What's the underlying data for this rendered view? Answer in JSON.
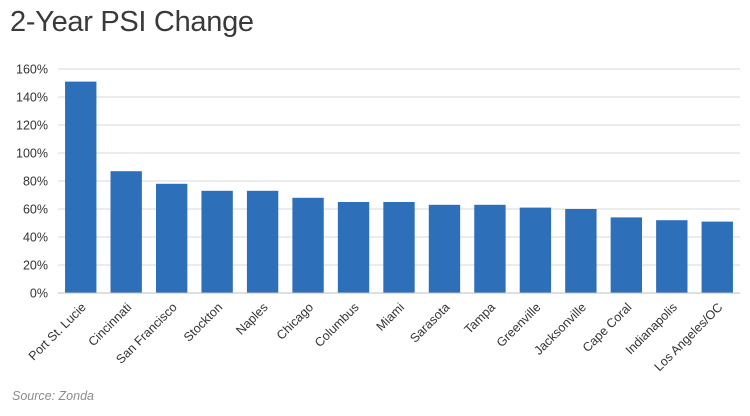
{
  "chart_data": {
    "type": "bar",
    "title": "2-Year PSI Change",
    "source": "Source: Zonda",
    "xlabel": "",
    "ylabel": "",
    "categories": [
      "Port St. Lucie",
      "Cincinnati",
      "San Francisco",
      "Stockton",
      "Naples",
      "Chicago",
      "Columbus",
      "Miami",
      "Sarasota",
      "Tampa",
      "Greenville",
      "Jacksonville",
      "Cape Coral",
      "Indianapolis",
      "Los Angeles/OC"
    ],
    "values": [
      151,
      87,
      78,
      73,
      73,
      68,
      65,
      65,
      63,
      63,
      61,
      60,
      54,
      52,
      51
    ],
    "ylim": [
      0,
      160
    ],
    "yticks": [
      0,
      20,
      40,
      60,
      80,
      100,
      120,
      140,
      160
    ],
    "ytick_labels": [
      "0%",
      "20%",
      "40%",
      "60%",
      "80%",
      "100%",
      "120%",
      "140%",
      "160%"
    ],
    "bar_color": "#2e6fba",
    "grid": true,
    "legend": "none"
  }
}
